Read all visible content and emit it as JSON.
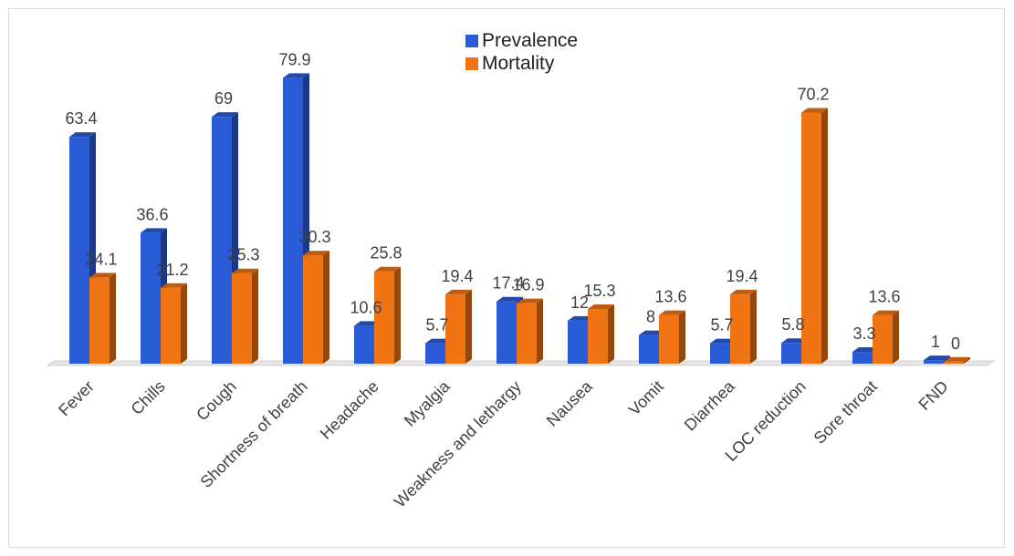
{
  "chart_data": {
    "type": "bar",
    "categories": [
      "Fever",
      "Chills",
      "Cough",
      "Shortness of breath",
      "Headache",
      "Myalgia",
      "Weakness and lethargy",
      "Nausea",
      "Vomit",
      "Diarrhea",
      "LOC reduction",
      "Sore throat",
      "FND"
    ],
    "series": [
      {
        "name": "Prevalence",
        "color": "#2a5bd7",
        "values": [
          63.4,
          36.6,
          69,
          79.9,
          10.6,
          5.7,
          17.4,
          12,
          8,
          5.7,
          5.8,
          3.3,
          1
        ]
      },
      {
        "name": "Mortality",
        "color": "#f07314",
        "values": [
          24.1,
          21.2,
          25.3,
          30.3,
          25.8,
          19.4,
          16.9,
          15.3,
          13.6,
          19.4,
          70.2,
          13.6,
          0
        ]
      }
    ],
    "data_labels": {
      "Prevalence": [
        "63.4",
        "36.6",
        "69",
        "79.9",
        "10.6",
        "5.7",
        "17.4",
        "12",
        "8",
        "5.7",
        "5.8",
        "3.3",
        "1"
      ],
      "Mortality": [
        "24.1",
        "21.2",
        "25.3",
        "30.3",
        "25.8",
        "19.4",
        "16.9",
        "15.3",
        "13.6",
        "19.4",
        "70.2",
        "13.6",
        "0"
      ]
    },
    "ylim": [
      0,
      80
    ],
    "legend": "top-center",
    "grid": false,
    "style": "3d-column"
  }
}
